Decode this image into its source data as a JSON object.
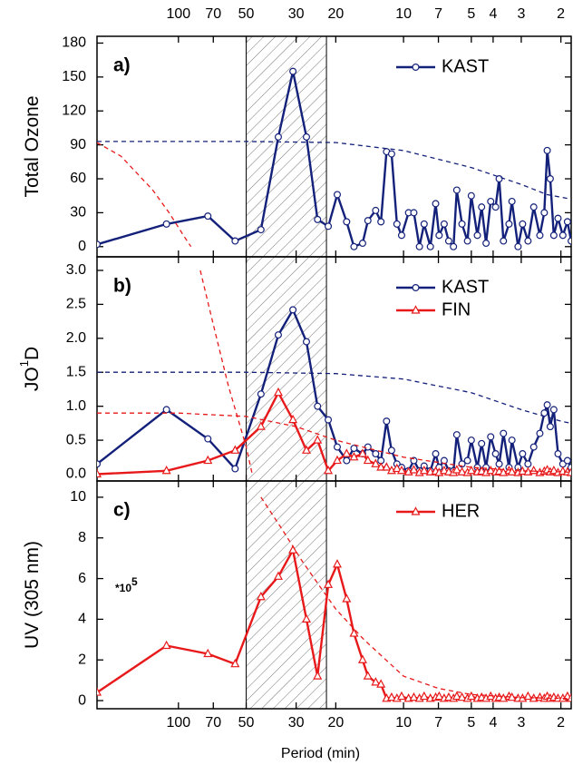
{
  "chart_data": [
    {
      "type": "line",
      "panel_label": "a)",
      "ylabel": [
        "Total Ozone"
      ],
      "xscale": "log",
      "xlim": [
        230,
        1.8
      ],
      "xticks": [
        100,
        70,
        50,
        30,
        20,
        10,
        7,
        5,
        4,
        3,
        2
      ],
      "ylim": [
        -9,
        186
      ],
      "yticks": [
        0,
        30,
        60,
        90,
        120,
        150,
        180
      ],
      "highlight": [
        50,
        22
      ],
      "legend": "upper right",
      "x": [
        230,
        113,
        74,
        56,
        43,
        36,
        31,
        27,
        24.1,
        21.6,
        19.7,
        17.9,
        16.6,
        15.2,
        14.4,
        13.3,
        12.6,
        11.9,
        11.3,
        10.7,
        10.2,
        9.5,
        9,
        8.5,
        8.1,
        7.6,
        7.2,
        6.95,
        6.6,
        6.3,
        6,
        5.8,
        5.5,
        5.2,
        5,
        4.7,
        4.5,
        4.3,
        4.1,
        3.9,
        3.76,
        3.6,
        3.4,
        3.3,
        3.1,
        2.96,
        2.8,
        2.64,
        2.48,
        2.37,
        2.3,
        2.23,
        2.15,
        2.06,
        1.96,
        1.87,
        1.8
      ],
      "series": [
        {
          "name": "KAST",
          "color": "#14217a",
          "marker": "circle",
          "values": [
            2,
            20,
            27,
            5,
            15,
            97,
            155,
            97,
            24,
            18,
            46,
            22,
            0,
            3,
            23,
            32,
            22,
            84,
            82,
            20,
            10,
            30,
            30,
            0,
            20,
            0,
            38,
            10,
            20,
            5,
            0,
            50,
            20,
            5,
            45,
            10,
            35,
            3,
            40,
            35,
            60,
            5,
            20,
            40,
            0,
            20,
            5,
            35,
            10,
            30,
            85,
            60,
            10,
            25,
            10,
            22,
            5
          ]
        },
        {
          "color": "#14217a",
          "dash": true,
          "x": [
            230,
            50,
            20,
            10,
            5,
            3,
            2.3,
            1.8
          ],
          "values": [
            93,
            93,
            92,
            85,
            70,
            55,
            46,
            42
          ]
        },
        {
          "color": "#e8191a",
          "dash": true,
          "x": [
            230,
            180,
            130,
            110,
            95,
            88
          ],
          "values": [
            92,
            80,
            50,
            30,
            10,
            0
          ]
        }
      ]
    },
    {
      "type": "line",
      "panel_label": "b)",
      "ylabel": [
        "JO",
        "1",
        "D"
      ],
      "xscale": "log",
      "xlim": [
        230,
        1.8
      ],
      "xticks": [
        100,
        70,
        50,
        30,
        20,
        10,
        7,
        5,
        4,
        3,
        2
      ],
      "ylim": [
        -0.1,
        3.2
      ],
      "yticks": [
        {
          "value": 0,
          "label": "0.0"
        },
        0.5,
        {
          "value": 1,
          "label": "1.0"
        },
        1.5,
        {
          "value": 2,
          "label": "2.0"
        },
        2.5,
        {
          "value": 3,
          "label": "3.0"
        }
      ],
      "highlight": [
        50,
        22
      ],
      "legend": "upper right",
      "x": [
        230,
        113,
        74,
        56,
        43,
        36,
        31,
        27,
        24.1,
        21.6,
        19.7,
        17.9,
        16.6,
        15.2,
        14.4,
        13.3,
        12.6,
        11.9,
        11.3,
        10.7,
        10.2,
        9.5,
        9,
        8.5,
        8.1,
        7.6,
        7.2,
        6.95,
        6.6,
        6.3,
        6,
        5.8,
        5.5,
        5.2,
        5,
        4.7,
        4.5,
        4.3,
        4.1,
        3.9,
        3.76,
        3.6,
        3.4,
        3.3,
        3.1,
        2.96,
        2.8,
        2.64,
        2.48,
        2.37,
        2.3,
        2.23,
        2.15,
        2.06,
        1.96,
        1.87,
        1.8
      ],
      "series": [
        {
          "name": "KAST",
          "color": "#14217a",
          "marker": "circle",
          "values": [
            0.15,
            0.95,
            0.52,
            0.08,
            1.18,
            2.05,
            2.42,
            1.95,
            1.0,
            0.8,
            0.4,
            0.2,
            0.38,
            0.3,
            0.4,
            0.3,
            0.2,
            0.78,
            0.35,
            0.15,
            0.1,
            0.05,
            0.2,
            0.05,
            0.12,
            0.05,
            0.3,
            0.1,
            0.2,
            0.05,
            0.05,
            0.58,
            0.15,
            0.2,
            0.5,
            0.1,
            0.45,
            0.1,
            0.55,
            0.3,
            0.15,
            0.6,
            0.1,
            0.5,
            0.1,
            0.3,
            0.15,
            0.4,
            0.6,
            0.9,
            1.02,
            0.7,
            0.95,
            0.3,
            0.15,
            0.2,
            0.1
          ]
        },
        {
          "name": "FIN",
          "color": "#e8191a",
          "marker": "triangle",
          "values": [
            0,
            0.05,
            0.2,
            0.35,
            0.7,
            1.2,
            0.8,
            0.35,
            0.5,
            0.05,
            0.2,
            0.3,
            0.25,
            0.3,
            0.2,
            0.15,
            0.1,
            0.1,
            0.05,
            0.08,
            0.05,
            0.03,
            0.06,
            0.02,
            0.05,
            0.03,
            0.04,
            0.02,
            0.05,
            0.03,
            0.02,
            0.06,
            0.03,
            0.02,
            0.05,
            0.03,
            0.04,
            0.02,
            0.05,
            0.03,
            0.04,
            0.02,
            0.05,
            0.03,
            0.02,
            0.04,
            0.03,
            0.05,
            0.02,
            0.04,
            0.06,
            0.03,
            0.05,
            0.02,
            0.04,
            0.03,
            0.02
          ]
        },
        {
          "color": "#14217a",
          "dash": true,
          "x": [
            230,
            50,
            20,
            10,
            5,
            3,
            2,
            1.8
          ],
          "values": [
            1.5,
            1.5,
            1.48,
            1.4,
            1.2,
            0.95,
            0.78,
            0.75
          ]
        },
        {
          "color": "#e8191a",
          "dash": true,
          "x": [
            230,
            100,
            50,
            30,
            20,
            10,
            5,
            3,
            1.8
          ],
          "values": [
            0.9,
            0.9,
            0.85,
            0.7,
            0.5,
            0.25,
            0.1,
            0.05,
            0.03
          ]
        },
        {
          "color": "#e8191a",
          "dash": true,
          "x": [
            80,
            70,
            60,
            50,
            47
          ],
          "values": [
            3.0,
            2.2,
            1.3,
            0.4,
            0
          ]
        }
      ]
    },
    {
      "type": "line",
      "panel_label": "c)",
      "ylabel": [
        "UV (305 nm)"
      ],
      "xlabel": "Period (min)",
      "annotation": [
        "*10",
        "5"
      ],
      "xscale": "log",
      "xlim": [
        230,
        1.8
      ],
      "xticks": [
        100,
        70,
        50,
        30,
        20,
        10,
        7,
        5,
        4,
        3,
        2
      ],
      "ylim": [
        -0.4,
        10.8
      ],
      "yticks": [
        0,
        2,
        4,
        6,
        8,
        10
      ],
      "highlight": [
        50,
        22
      ],
      "legend": "upper right",
      "x": [
        230,
        113,
        74,
        56,
        43,
        36,
        31,
        27,
        24.1,
        21.6,
        19.7,
        17.9,
        16.6,
        15.2,
        14.4,
        13.3,
        12.6,
        11.9,
        11.3,
        10.7,
        10.2,
        9.5,
        9,
        8.5,
        8.1,
        7.6,
        7.2,
        6.95,
        6.6,
        6.3,
        6,
        5.8,
        5.5,
        5.2,
        5,
        4.7,
        4.5,
        4.3,
        4.1,
        3.9,
        3.76,
        3.6,
        3.4,
        3.3,
        3.1,
        2.96,
        2.8,
        2.64,
        2.48,
        2.37,
        2.3,
        2.23,
        2.15,
        2.06,
        1.96,
        1.87,
        1.8
      ],
      "series": [
        {
          "name": "HER",
          "color": "#e8191a",
          "marker": "triangle",
          "values": [
            0.4,
            2.7,
            2.3,
            1.8,
            5.1,
            6.1,
            7.4,
            4,
            1.2,
            5.7,
            6.7,
            5,
            3.3,
            2,
            1.2,
            0.9,
            0.8,
            0.1,
            0.15,
            0.1,
            0.2,
            0.1,
            0.15,
            0.1,
            0.2,
            0.1,
            0.15,
            0.2,
            0.1,
            0.15,
            0.1,
            0.2,
            0.15,
            0.1,
            0.2,
            0.1,
            0.15,
            0.1,
            0.2,
            0.1,
            0.15,
            0.1,
            0.2,
            0.15,
            0.1,
            0.1,
            0.2,
            0.1,
            0.15,
            0.1,
            0.2,
            0.1,
            0.15,
            0.1,
            0.1,
            0.2,
            0.1
          ]
        },
        {
          "color": "#e8191a",
          "dash": true,
          "x": [
            43,
            35,
            28,
            20,
            15,
            10,
            7,
            5,
            3,
            1.8
          ],
          "values": [
            10,
            8.5,
            6.8,
            4.5,
            3,
            1.2,
            0.6,
            0.3,
            0.15,
            0.1
          ]
        }
      ]
    }
  ]
}
